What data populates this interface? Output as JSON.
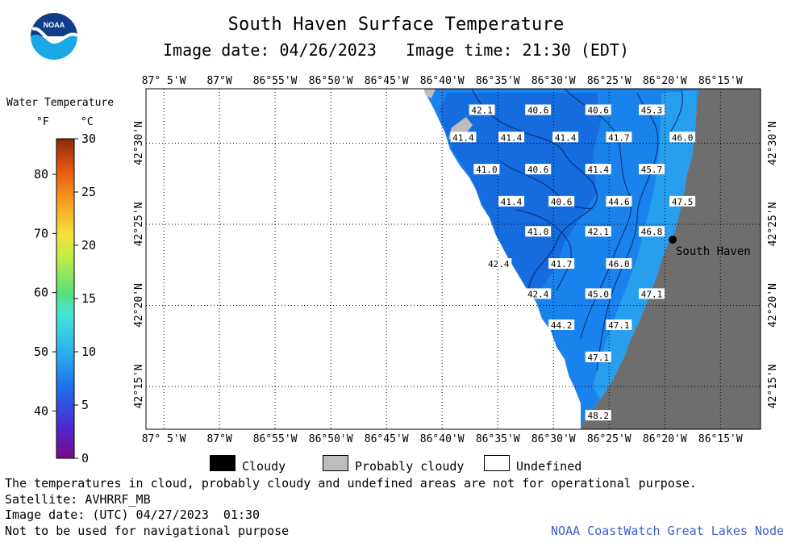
{
  "header": {
    "title": "South Haven Surface Temperature",
    "subtitle": "Image date: 04/26/2023   Image time: 21:30 (EDT)"
  },
  "logo": {
    "text": "NOAA",
    "icon": "noaa-logo-icon"
  },
  "legend": {
    "title": "Water Temperature",
    "unit_f": "°F",
    "unit_c": "°C",
    "f_ticks": [
      "80",
      "70",
      "60",
      "50",
      "40"
    ],
    "c_ticks": [
      "30",
      "25",
      "20",
      "15",
      "10",
      "5",
      "0"
    ]
  },
  "map": {
    "lon_labels": [
      "87° 5'W",
      "87°W",
      "86°55'W",
      "86°50'W",
      "86°45'W",
      "86°40'W",
      "86°35'W",
      "86°30'W",
      "86°25'W",
      "86°20'W",
      "86°15'W"
    ],
    "lat_labels": [
      "42°30'N",
      "42°25'N",
      "42°20'N",
      "42°15'N"
    ],
    "city": "South Haven",
    "temperature_labels": [
      {
        "v": "42.1",
        "lon": -86.607,
        "lat": 42.534
      },
      {
        "v": "40.6",
        "lon": -86.523,
        "lat": 42.534
      },
      {
        "v": "40.6",
        "lon": -86.433,
        "lat": 42.534
      },
      {
        "v": "45.3",
        "lon": -86.353,
        "lat": 42.534
      },
      {
        "v": "41.4",
        "lon": -86.635,
        "lat": 42.506
      },
      {
        "v": "41.4",
        "lon": -86.563,
        "lat": 42.506
      },
      {
        "v": "41.4",
        "lon": -86.482,
        "lat": 42.506
      },
      {
        "v": "41.7",
        "lon": -86.402,
        "lat": 42.506
      },
      {
        "v": "46.0",
        "lon": -86.307,
        "lat": 42.506
      },
      {
        "v": "41.0",
        "lon": -86.6,
        "lat": 42.473
      },
      {
        "v": "40.6",
        "lon": -86.523,
        "lat": 42.473
      },
      {
        "v": "41.4",
        "lon": -86.433,
        "lat": 42.473
      },
      {
        "v": "45.7",
        "lon": -86.353,
        "lat": 42.473
      },
      {
        "v": "41.4",
        "lon": -86.563,
        "lat": 42.44
      },
      {
        "v": "40.6",
        "lon": -86.488,
        "lat": 42.44
      },
      {
        "v": "44.6",
        "lon": -86.402,
        "lat": 42.44
      },
      {
        "v": "47.5",
        "lon": -86.307,
        "lat": 42.44
      },
      {
        "v": "41.0",
        "lon": -86.523,
        "lat": 42.409
      },
      {
        "v": "42.1",
        "lon": -86.433,
        "lat": 42.409
      },
      {
        "v": "46.8",
        "lon": -86.353,
        "lat": 42.409
      },
      {
        "v": "42.4",
        "lon": -86.582,
        "lat": 42.376
      },
      {
        "v": "41.7",
        "lon": -86.488,
        "lat": 42.376
      },
      {
        "v": "46.0",
        "lon": -86.402,
        "lat": 42.376
      },
      {
        "v": "42.4",
        "lon": -86.523,
        "lat": 42.345
      },
      {
        "v": "45.0",
        "lon": -86.433,
        "lat": 42.345
      },
      {
        "v": "47.1",
        "lon": -86.353,
        "lat": 42.345
      },
      {
        "v": "44.2",
        "lon": -86.488,
        "lat": 42.313
      },
      {
        "v": "47.1",
        "lon": -86.402,
        "lat": 42.313
      },
      {
        "v": "47.1",
        "lon": -86.433,
        "lat": 42.28
      },
      {
        "v": "48.2",
        "lon": -86.433,
        "lat": 42.22
      }
    ]
  },
  "key": {
    "cloudy": "Cloudy",
    "probably_cloudy": "Probably cloudy",
    "undefined": "Undefined"
  },
  "footer": {
    "note": "The temperatures in cloud, probably cloudy and undefined areas are not for operational purpose.",
    "satellite": "Satellite: AVHRRF_MB",
    "utc_date": "Image date: (UTC) 04/27/2023  01:30",
    "nav_warning": "Not to be used for navigational purpose",
    "credit": "NOAA CoastWatch Great Lakes Node"
  },
  "colors": {
    "water": "#1a82ec",
    "land": "#6e6e6e",
    "cloud": "#000000",
    "probably_cloudy": "#bdbdbd",
    "credit": "#3a5fcf"
  }
}
